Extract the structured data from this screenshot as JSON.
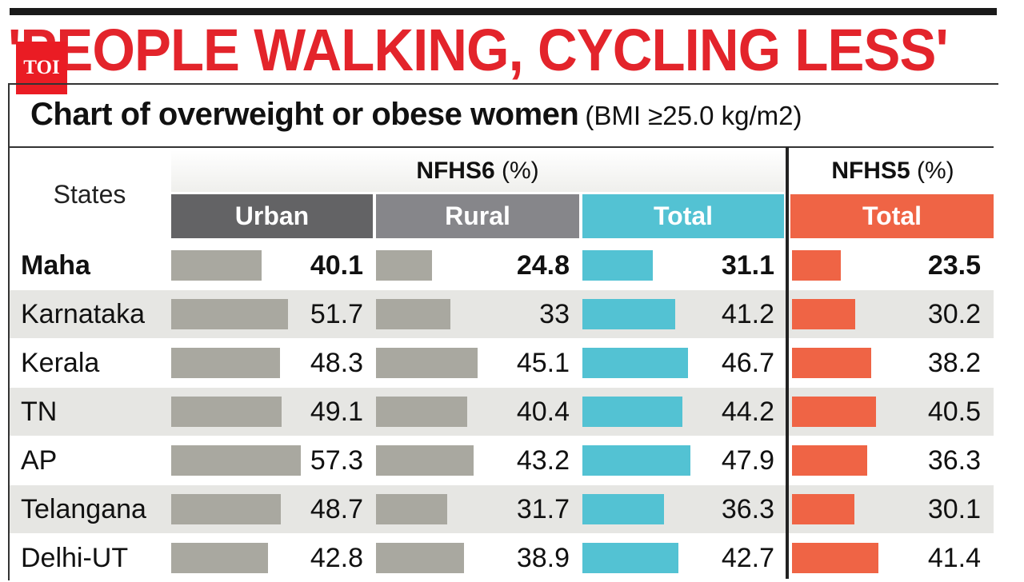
{
  "headline": "'PEOPLE WALKING, CYCLING LESS'",
  "logo": {
    "text": "TOI"
  },
  "subtitle": {
    "main": "Chart of overweight or obese women",
    "unit": "(BMI ≥25.0 kg/m2)"
  },
  "colors": {
    "headline": "#e3242b",
    "urban_header": "#636365",
    "rural_header": "#86868a",
    "nfhs6_total_header": "#53c2d3",
    "nfhs5_total_header": "#ef6445",
    "urban_bar": "#a9a8a0",
    "rural_bar": "#a9a8a0",
    "nfhs6_total_bar": "#53c2d3",
    "nfhs5_total_bar": "#ef6445",
    "row_shade": "#e6e6e3"
  },
  "chart_data": {
    "type": "table",
    "title": "Chart of overweight or obese women",
    "subtitle": "(BMI ≥25.0 kg/m2)",
    "row_header": "States",
    "groups": [
      {
        "name": "NFHS6",
        "unit": "(%)",
        "columns": [
          "Urban",
          "Rural",
          "Total"
        ]
      },
      {
        "name": "NFHS5",
        "unit": "(%)",
        "columns": [
          "Total"
        ]
      }
    ],
    "rows": [
      {
        "state": "Maha",
        "highlight": true,
        "values": [
          "40.1",
          "24.8",
          "31.1",
          "23.5"
        ]
      },
      {
        "state": "Karnataka",
        "highlight": false,
        "values": [
          "51.7",
          "33",
          "41.2",
          "30.2"
        ]
      },
      {
        "state": "Kerala",
        "highlight": false,
        "values": [
          "48.3",
          "45.1",
          "46.7",
          "38.2"
        ]
      },
      {
        "state": "TN",
        "highlight": false,
        "values": [
          "49.1",
          "40.4",
          "44.2",
          "40.5"
        ]
      },
      {
        "state": "AP",
        "highlight": false,
        "values": [
          "57.3",
          "43.2",
          "47.9",
          "36.3"
        ]
      },
      {
        "state": "Telangana",
        "highlight": false,
        "values": [
          "48.7",
          "31.7",
          "36.3",
          "30.1"
        ]
      },
      {
        "state": "Delhi-UT",
        "highlight": false,
        "values": [
          "42.8",
          "38.9",
          "42.7",
          "41.4"
        ]
      }
    ]
  }
}
